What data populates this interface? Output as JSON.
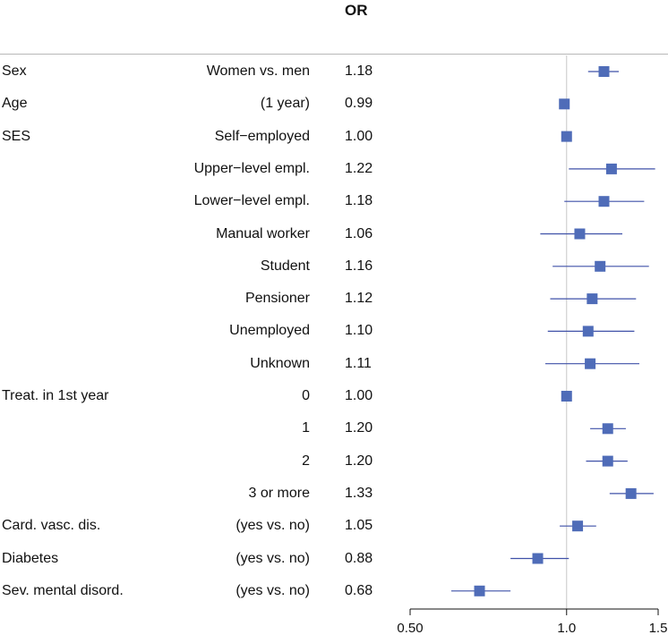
{
  "header": {
    "or_label": "OR"
  },
  "colors": {
    "marker": "#4f6cb8",
    "ci_line": "#3f51a8",
    "ref_line": "#c8c8c8",
    "axis": "#111111"
  },
  "chart_data": {
    "type": "forest",
    "xscale": "log",
    "xlim": [
      0.5,
      1.5
    ],
    "ref_value": 1.0,
    "x_ticks": [
      {
        "value": 0.5,
        "label": "0.50"
      },
      {
        "value": 1.0,
        "label": "1.0"
      },
      {
        "value": 1.5,
        "label": "1.5"
      }
    ],
    "rows": [
      {
        "variable": "Sex",
        "category": "Women vs. men",
        "or_text": "1.18",
        "or": 1.18,
        "lo": 1.1,
        "hi": 1.26
      },
      {
        "variable": "Age",
        "category": "(1 year)",
        "or_text": "0.99",
        "or": 0.99,
        "lo": 0.985,
        "hi": 0.995
      },
      {
        "variable": "SES",
        "category": "Self−employed",
        "or_text": "1.00",
        "or": 1.0,
        "lo": 1.0,
        "hi": 1.0
      },
      {
        "variable": "",
        "category": "Upper−level empl.",
        "or_text": "1.22",
        "or": 1.22,
        "lo": 1.01,
        "hi": 1.48
      },
      {
        "variable": "",
        "category": "Lower−level empl.",
        "or_text": "1.18",
        "or": 1.18,
        "lo": 0.99,
        "hi": 1.41
      },
      {
        "variable": "",
        "category": "Manual worker",
        "or_text": "1.06",
        "or": 1.06,
        "lo": 0.89,
        "hi": 1.28
      },
      {
        "variable": "",
        "category": "Student",
        "or_text": "1.16",
        "or": 1.16,
        "lo": 0.94,
        "hi": 1.44
      },
      {
        "variable": "",
        "category": "Pensioner",
        "or_text": "1.12",
        "or": 1.12,
        "lo": 0.93,
        "hi": 1.36
      },
      {
        "variable": "",
        "category": "Unemployed",
        "or_text": "1.10",
        "or": 1.1,
        "lo": 0.92,
        "hi": 1.35
      },
      {
        "variable": "",
        "category": "Unknown",
        "or_text": "1.11",
        "or": 1.11,
        "lo": 0.91,
        "hi": 1.38
      },
      {
        "variable": "Treat. in 1st year",
        "category": "0",
        "or_text": "1.00",
        "or": 1.0,
        "lo": 1.0,
        "hi": 1.0
      },
      {
        "variable": "",
        "category": "1",
        "or_text": "1.20",
        "or": 1.2,
        "lo": 1.11,
        "hi": 1.3
      },
      {
        "variable": "",
        "category": "2",
        "or_text": "1.20",
        "or": 1.2,
        "lo": 1.09,
        "hi": 1.31
      },
      {
        "variable": "",
        "category": "3 or more",
        "or_text": "1.33",
        "or": 1.33,
        "lo": 1.21,
        "hi": 1.47
      },
      {
        "variable": "Card. vasc. dis.",
        "category": "(yes vs. no)",
        "or_text": "1.05",
        "or": 1.05,
        "lo": 0.97,
        "hi": 1.14
      },
      {
        "variable": "Diabetes",
        "category": "(yes vs. no)",
        "or_text": "0.88",
        "or": 0.88,
        "lo": 0.78,
        "hi": 1.01
      },
      {
        "variable": "Sev. mental disord.",
        "category": "(yes vs. no)",
        "or_text": "0.68",
        "or": 0.68,
        "lo": 0.6,
        "hi": 0.78
      }
    ]
  }
}
